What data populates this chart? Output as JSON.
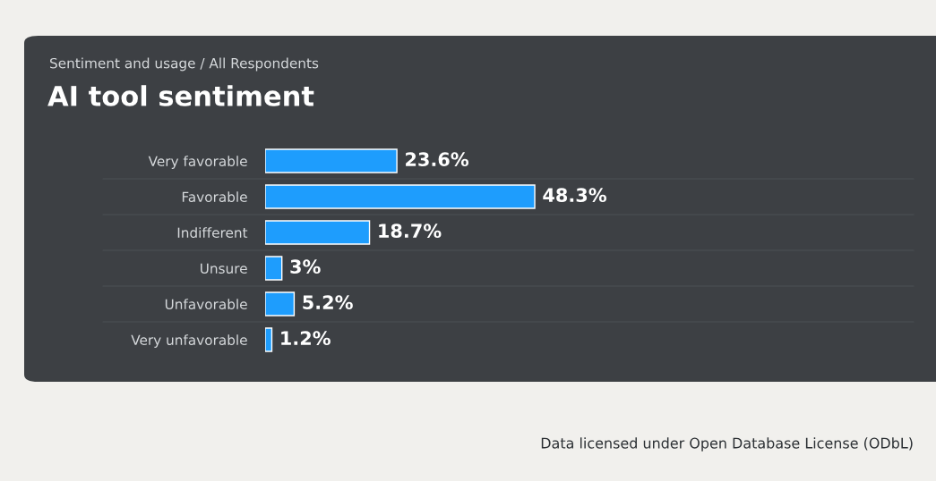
{
  "chart_data": {
    "type": "bar",
    "orientation": "horizontal",
    "subtitle": "Sentiment and usage / All Respondents",
    "title": "AI tool sentiment",
    "categories": [
      "Very favorable",
      "Favorable",
      "Indifferent",
      "Unsure",
      "Unfavorable",
      "Very unfavorable"
    ],
    "values": [
      23.6,
      48.3,
      18.7,
      3,
      5.2,
      1.2
    ],
    "value_labels": [
      "23.6%",
      "48.3%",
      "18.7%",
      "3%",
      "5.2%",
      "1.2%"
    ],
    "color": "#1e9dfd",
    "grid": "y",
    "annotations": [
      "Data licensed under Open Database License (ODbL)"
    ]
  }
}
